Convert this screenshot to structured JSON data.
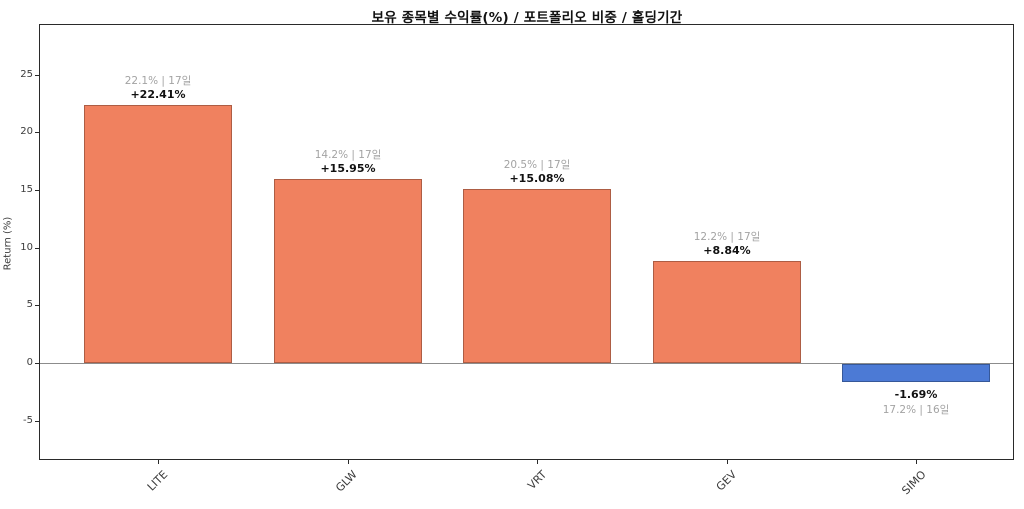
{
  "chart_data": {
    "type": "bar",
    "title": "보유 종목별 수익률(%) / 포트폴리오 비중 / 홀딩기간",
    "xlabel": "",
    "ylabel": "Return (%)",
    "categories": [
      "LITE",
      "GLW",
      "VRT",
      "GEV",
      "SIMO"
    ],
    "values": [
      22.41,
      15.95,
      15.08,
      8.84,
      -1.69
    ],
    "bar_value_labels": [
      "+22.41%",
      "+15.95%",
      "+15.08%",
      "+8.84%",
      "-1.69%"
    ],
    "bar_annotations": [
      "22.1% | 17일",
      "14.2% | 17일",
      "20.5% | 17일",
      "12.2% | 17일",
      "17.2% | 16일"
    ],
    "yticks": [
      25,
      20,
      15,
      10,
      5,
      0,
      -5
    ],
    "ylim": [
      -8.4,
      29.4
    ],
    "grid": false,
    "legend": false,
    "colors": {
      "positive_bar": "#F0815F",
      "negative_bar": "#4C7AD5",
      "bar_edge": "rgba(0,0,0,0.28)",
      "annotation_gray": "#A3A3A3",
      "value_text": "#111111",
      "axis": "#2A2A2A",
      "zero_line": "#8C8C8C",
      "background": "#FFFFFF"
    }
  }
}
